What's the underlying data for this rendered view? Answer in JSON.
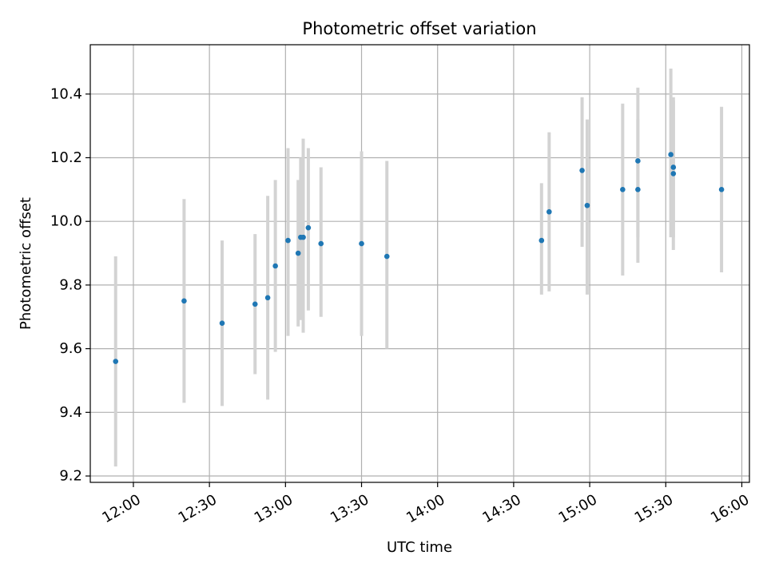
{
  "chart_data": {
    "type": "scatter",
    "title": "Photometric offset variation",
    "xlabel": "UTC time",
    "ylabel": "Photometric offset",
    "x_axis_kind": "time",
    "xlim": [
      "11:43",
      "16:03"
    ],
    "ylim": [
      9.18,
      10.555
    ],
    "x_ticks": [
      "12:00",
      "12:30",
      "13:00",
      "13:30",
      "14:00",
      "14:30",
      "15:00",
      "15:30",
      "16:00"
    ],
    "y_ticks": [
      "9.2",
      "9.4",
      "9.6",
      "9.8",
      "10.0",
      "10.2",
      "10.4"
    ],
    "grid": true,
    "colors": {
      "point": "#1f77b4",
      "error_bar": "#d3d3d3",
      "grid": "#b0b0b0"
    },
    "series": [
      {
        "points": [
          {
            "x": "11:53",
            "y": 9.56,
            "y_low": 9.23,
            "y_high": 9.89
          },
          {
            "x": "12:20",
            "y": 9.75,
            "y_low": 9.43,
            "y_high": 10.07
          },
          {
            "x": "12:35",
            "y": 9.68,
            "y_low": 9.42,
            "y_high": 9.94
          },
          {
            "x": "12:48",
            "y": 9.74,
            "y_low": 9.52,
            "y_high": 9.96
          },
          {
            "x": "12:53",
            "y": 9.76,
            "y_low": 9.44,
            "y_high": 10.08
          },
          {
            "x": "12:56",
            "y": 9.86,
            "y_low": 9.59,
            "y_high": 10.13
          },
          {
            "x": "13:01",
            "y": 9.94,
            "y_low": 9.64,
            "y_high": 10.23
          },
          {
            "x": "13:05",
            "y": 9.9,
            "y_low": 9.67,
            "y_high": 10.13
          },
          {
            "x": "13:06",
            "y": 9.95,
            "y_low": 9.69,
            "y_high": 10.2
          },
          {
            "x": "13:07",
            "y": 9.95,
            "y_low": 9.65,
            "y_high": 10.26
          },
          {
            "x": "13:09",
            "y": 9.98,
            "y_low": 9.72,
            "y_high": 10.23
          },
          {
            "x": "13:14",
            "y": 9.93,
            "y_low": 9.7,
            "y_high": 10.17
          },
          {
            "x": "13:30",
            "y": 9.93,
            "y_low": 9.64,
            "y_high": 10.22
          },
          {
            "x": "13:40",
            "y": 9.89,
            "y_low": 9.6,
            "y_high": 10.19
          },
          {
            "x": "14:41",
            "y": 9.94,
            "y_low": 9.77,
            "y_high": 10.12
          },
          {
            "x": "14:44",
            "y": 10.03,
            "y_low": 9.78,
            "y_high": 10.28
          },
          {
            "x": "14:57",
            "y": 10.16,
            "y_low": 9.92,
            "y_high": 10.39
          },
          {
            "x": "14:59",
            "y": 10.05,
            "y_low": 9.77,
            "y_high": 10.32
          },
          {
            "x": "15:13",
            "y": 10.1,
            "y_low": 9.83,
            "y_high": 10.37
          },
          {
            "x": "15:19",
            "y": 10.1,
            "y_low": 9.87,
            "y_high": 10.32
          },
          {
            "x": "15:19",
            "y": 10.19,
            "y_low": 9.95,
            "y_high": 10.42
          },
          {
            "x": "15:32",
            "y": 10.21,
            "y_low": 9.95,
            "y_high": 10.48
          },
          {
            "x": "15:33",
            "y": 10.17,
            "y_low": 9.95,
            "y_high": 10.39
          },
          {
            "x": "15:33",
            "y": 10.15,
            "y_low": 9.91,
            "y_high": 10.38
          },
          {
            "x": "15:52",
            "y": 10.1,
            "y_low": 9.84,
            "y_high": 10.36
          }
        ]
      }
    ]
  }
}
